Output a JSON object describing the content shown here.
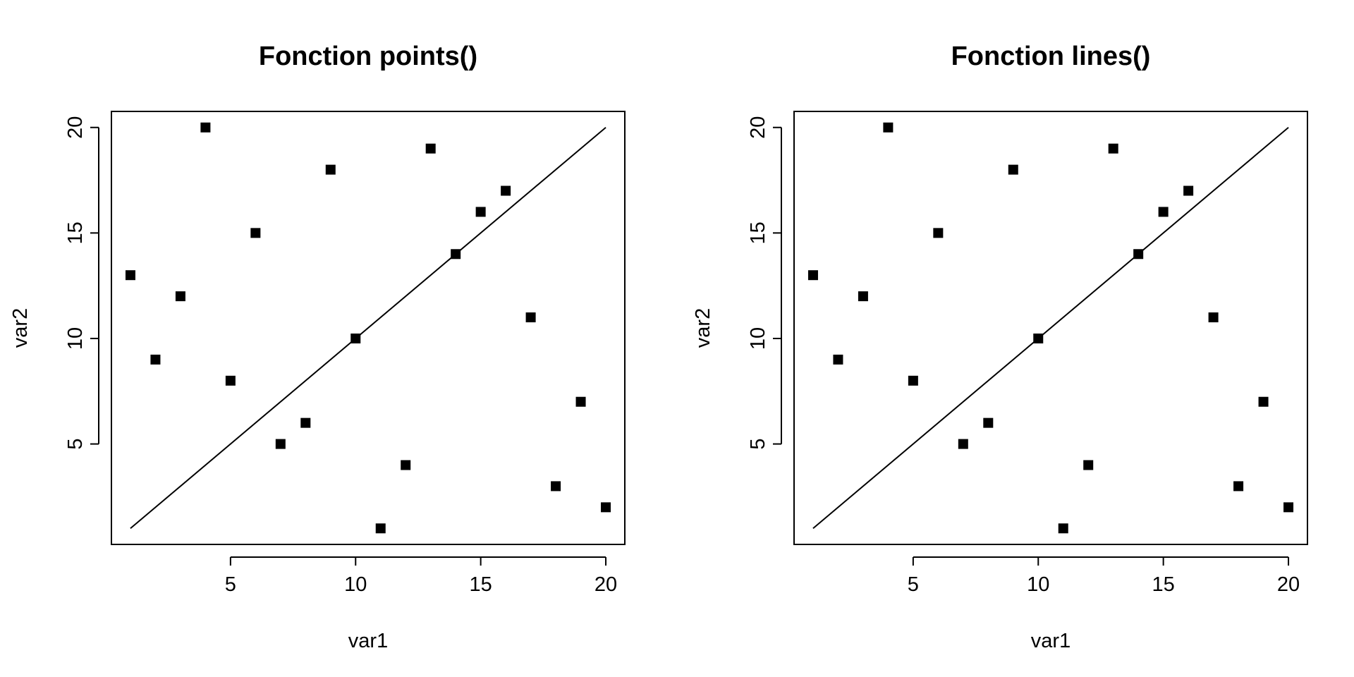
{
  "chart_data": [
    {
      "type": "scatter",
      "title": "Fonction points()",
      "xlabel": "var1",
      "ylabel": "var2",
      "xlim": [
        0.24,
        20.76
      ],
      "ylim": [
        0.24,
        20.76
      ],
      "xticks": [
        5,
        10,
        15,
        20
      ],
      "yticks": [
        5,
        10,
        15,
        20
      ],
      "grid": false,
      "marker": "filled-square",
      "color": "#000000",
      "series": [
        {
          "x": [
            1,
            2,
            3,
            4,
            5,
            6,
            7,
            8,
            9,
            10,
            11,
            12,
            13,
            14,
            15,
            16,
            17,
            18,
            19,
            20
          ],
          "y": [
            13,
            9,
            12,
            20,
            8,
            15,
            5,
            6,
            18,
            10,
            1,
            4,
            19,
            14,
            16,
            17,
            11,
            3,
            7,
            2
          ]
        }
      ],
      "line": {
        "x": [
          1,
          20
        ],
        "y": [
          1,
          20
        ]
      }
    },
    {
      "type": "scatter",
      "title": "Fonction lines()",
      "xlabel": "var1",
      "ylabel": "var2",
      "xlim": [
        0.24,
        20.76
      ],
      "ylim": [
        0.24,
        20.76
      ],
      "xticks": [
        5,
        10,
        15,
        20
      ],
      "yticks": [
        5,
        10,
        15,
        20
      ],
      "grid": false,
      "marker": "filled-square",
      "color": "#000000",
      "series": [
        {
          "x": [
            1,
            2,
            3,
            4,
            5,
            6,
            7,
            8,
            9,
            10,
            11,
            12,
            13,
            14,
            15,
            16,
            17,
            18,
            19,
            20
          ],
          "y": [
            13,
            9,
            12,
            20,
            8,
            15,
            5,
            6,
            18,
            10,
            1,
            4,
            19,
            14,
            16,
            17,
            11,
            3,
            7,
            2
          ]
        }
      ],
      "line": {
        "x": [
          1,
          20
        ],
        "y": [
          1,
          20
        ]
      }
    }
  ]
}
